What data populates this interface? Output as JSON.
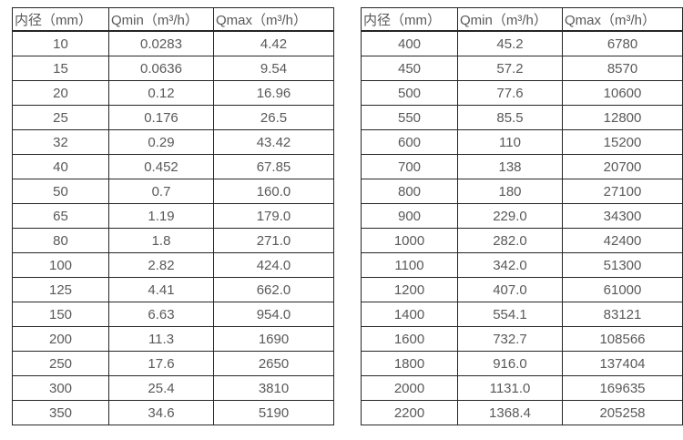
{
  "page": {
    "background": "#ffffff",
    "text_color": "#595959",
    "border_color": "#262626"
  },
  "tables": [
    {
      "name": "flow-table-left",
      "headers": [
        "内径（mm）",
        "Qmin（m³/h）",
        "Qmax（m³/h）"
      ],
      "rows": [
        [
          "10",
          "0.0283",
          "4.42"
        ],
        [
          "15",
          "0.0636",
          "9.54"
        ],
        [
          "20",
          "0.12",
          "16.96"
        ],
        [
          "25",
          "0.176",
          "26.5"
        ],
        [
          "32",
          "0.29",
          "43.42"
        ],
        [
          "40",
          "0.452",
          "67.85"
        ],
        [
          "50",
          "0.7",
          "160.0"
        ],
        [
          "65",
          "1.19",
          "179.0"
        ],
        [
          "80",
          "1.8",
          "271.0"
        ],
        [
          "100",
          "2.82",
          "424.0"
        ],
        [
          "125",
          "4.41",
          "662.0"
        ],
        [
          "150",
          "6.63",
          "954.0"
        ],
        [
          "200",
          "11.3",
          "1690"
        ],
        [
          "250",
          "17.6",
          "2650"
        ],
        [
          "300",
          "25.4",
          "3810"
        ],
        [
          "350",
          "34.6",
          "5190"
        ]
      ]
    },
    {
      "name": "flow-table-right",
      "headers": [
        "内径（mm）",
        "Qmin（m³/h）",
        "Qmax（m³/h）"
      ],
      "rows": [
        [
          "400",
          "45.2",
          "6780"
        ],
        [
          "450",
          "57.2",
          "8570"
        ],
        [
          "500",
          "77.6",
          "10600"
        ],
        [
          "550",
          "85.5",
          "12800"
        ],
        [
          "600",
          "110",
          "15200"
        ],
        [
          "700",
          "138",
          "20700"
        ],
        [
          "800",
          "180",
          "27100"
        ],
        [
          "900",
          "229.0",
          "34300"
        ],
        [
          "1000",
          "282.0",
          "42400"
        ],
        [
          "1100",
          "342.0",
          "51300"
        ],
        [
          "1200",
          "407.0",
          "61000"
        ],
        [
          "1400",
          "554.1",
          "83121"
        ],
        [
          "1600",
          "732.7",
          "108566"
        ],
        [
          "1800",
          "916.0",
          "137404"
        ],
        [
          "2000",
          "1131.0",
          "169635"
        ],
        [
          "2200",
          "1368.4",
          "205258"
        ]
      ]
    }
  ]
}
